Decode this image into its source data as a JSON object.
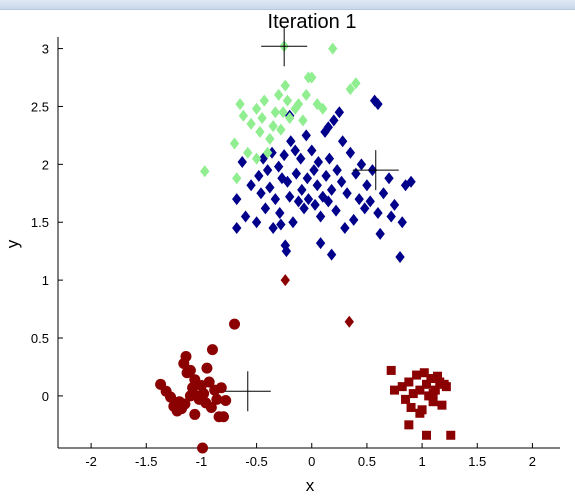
{
  "chart_data": {
    "type": "scatter",
    "title": "Iteration 1",
    "xlabel": "x",
    "ylabel": "y",
    "xlim": [
      -2.3,
      2.25
    ],
    "ylim": [
      -0.45,
      3.1
    ],
    "x_ticks": [
      -2,
      -1.5,
      -1,
      -0.5,
      0,
      0.5,
      1,
      1.5,
      2
    ],
    "x_tick_labels": [
      "-2",
      "-1.5",
      "-1",
      "-0.5",
      "0",
      "0.5",
      "1",
      "1.5",
      "2"
    ],
    "y_ticks": [
      0,
      0.5,
      1,
      1.5,
      2,
      2.5,
      3
    ],
    "y_tick_labels": [
      "0",
      "0.5",
      "1",
      "1.5",
      "2",
      "2.5",
      "3"
    ],
    "grid": false,
    "colors": {
      "dark_red": "#8b0000",
      "navy": "#00008b",
      "light_green": "#90ee90",
      "centroid": "#000000",
      "axis": "#000000"
    },
    "series": [
      {
        "marker": "circle",
        "color": "#8b0000",
        "points": [
          [
            -1.37,
            0.1
          ],
          [
            -1.32,
            0.04
          ],
          [
            -1.28,
            -0.01
          ],
          [
            -1.25,
            -0.09
          ],
          [
            -1.22,
            -0.13
          ],
          [
            -1.2,
            -0.05
          ],
          [
            -1.18,
            -0.11
          ],
          [
            -1.15,
            -0.07
          ],
          [
            -1.13,
            0.2
          ],
          [
            -1.1,
            0.0
          ],
          [
            -1.08,
            0.07
          ],
          [
            -1.06,
            -0.16
          ],
          [
            -1.04,
            0.0
          ],
          [
            -1.02,
            -0.03
          ],
          [
            -1.0,
            0.09
          ],
          [
            -0.98,
            0.02
          ],
          [
            -0.96,
            -0.06
          ],
          [
            -0.93,
            0.12
          ],
          [
            -0.91,
            -0.1
          ],
          [
            -0.9,
            0.4
          ],
          [
            -0.88,
            0.05
          ],
          [
            -0.86,
            -0.03
          ],
          [
            -0.84,
            -0.18
          ],
          [
            -0.82,
            0.07
          ],
          [
            -0.8,
            -0.18
          ],
          [
            -0.78,
            -0.04
          ],
          [
            -1.1,
            0.22
          ],
          [
            -1.14,
            0.34
          ],
          [
            -0.99,
            -0.45
          ],
          [
            -0.7,
            0.62
          ],
          [
            -1.16,
            0.28
          ],
          [
            -1.06,
            0.14
          ],
          [
            -0.95,
            0.24
          ]
        ]
      },
      {
        "marker": "square",
        "color": "#8b0000",
        "points": [
          [
            0.72,
            0.22
          ],
          [
            0.75,
            0.05
          ],
          [
            0.82,
            0.08
          ],
          [
            0.85,
            -0.03
          ],
          [
            0.88,
            0.12
          ],
          [
            0.9,
            -0.1
          ],
          [
            0.92,
            0.02
          ],
          [
            0.95,
            0.18
          ],
          [
            0.98,
            0.05
          ],
          [
            1.0,
            -0.12
          ],
          [
            1.02,
            0.2
          ],
          [
            1.04,
            0.1
          ],
          [
            1.06,
            0.0
          ],
          [
            1.08,
            0.15
          ],
          [
            1.1,
            -0.05
          ],
          [
            1.12,
            0.05
          ],
          [
            1.14,
            0.17
          ],
          [
            1.16,
            0.12
          ],
          [
            1.18,
            -0.08
          ],
          [
            1.2,
            0.1
          ],
          [
            1.22,
            0.08
          ],
          [
            1.04,
            -0.34
          ],
          [
            1.26,
            -0.34
          ],
          [
            0.88,
            -0.25
          ],
          [
            0.98,
            -0.15
          ],
          [
            1.1,
            0.02
          ]
        ]
      },
      {
        "marker": "diamond",
        "color": "#00008b",
        "points": [
          [
            -0.68,
            1.45
          ],
          [
            -0.68,
            1.7
          ],
          [
            -0.63,
            2.02
          ],
          [
            -0.6,
            1.55
          ],
          [
            -0.55,
            1.82
          ],
          [
            -0.5,
            1.5
          ],
          [
            -0.48,
            1.9
          ],
          [
            -0.46,
            1.75
          ],
          [
            -0.44,
            2.05
          ],
          [
            -0.42,
            1.62
          ],
          [
            -0.4,
            1.95
          ],
          [
            -0.38,
            1.8
          ],
          [
            -0.36,
            2.1
          ],
          [
            -0.35,
            1.45
          ],
          [
            -0.33,
            1.7
          ],
          [
            -0.3,
            1.98
          ],
          [
            -0.29,
            1.58
          ],
          [
            -0.27,
            1.88
          ],
          [
            -0.25,
            2.08
          ],
          [
            -0.24,
            1.3
          ],
          [
            -0.23,
            1.25
          ],
          [
            -0.22,
            1.85
          ],
          [
            -0.2,
            1.72
          ],
          [
            -0.19,
            2.2
          ],
          [
            -0.17,
            1.5
          ],
          [
            -0.15,
            2.12
          ],
          [
            -0.14,
            1.92
          ],
          [
            -0.12,
            1.68
          ],
          [
            -0.1,
            2.05
          ],
          [
            -0.09,
            1.78
          ],
          [
            -0.07,
            1.62
          ],
          [
            -0.05,
            2.25
          ],
          [
            -0.04,
            1.88
          ],
          [
            -0.03,
            1.7
          ],
          [
            0.0,
            2.12
          ],
          [
            0.02,
            1.95
          ],
          [
            0.03,
            1.65
          ],
          [
            0.05,
            1.82
          ],
          [
            0.06,
            2.02
          ],
          [
            0.08,
            1.55
          ],
          [
            0.1,
            1.72
          ],
          [
            0.12,
            2.28
          ],
          [
            0.13,
            1.9
          ],
          [
            0.15,
            1.68
          ],
          [
            0.16,
            2.05
          ],
          [
            0.18,
            1.78
          ],
          [
            0.2,
            2.38
          ],
          [
            0.22,
            1.6
          ],
          [
            0.23,
            1.95
          ],
          [
            0.25,
            2.45
          ],
          [
            0.27,
            1.85
          ],
          [
            0.28,
            2.2
          ],
          [
            0.3,
            1.45
          ],
          [
            0.32,
            1.75
          ],
          [
            0.35,
            2.1
          ],
          [
            0.38,
            1.52
          ],
          [
            0.4,
            1.92
          ],
          [
            0.43,
            1.7
          ],
          [
            0.45,
            2.0
          ],
          [
            0.48,
            1.62
          ],
          [
            0.5,
            1.82
          ],
          [
            0.53,
            1.68
          ],
          [
            0.55,
            1.95
          ],
          [
            0.57,
            2.55
          ],
          [
            0.6,
            2.52
          ],
          [
            0.6,
            1.58
          ],
          [
            0.62,
            1.4
          ],
          [
            0.65,
            1.75
          ],
          [
            0.7,
            1.88
          ],
          [
            0.72,
            1.55
          ],
          [
            0.75,
            1.65
          ],
          [
            0.8,
            1.2
          ],
          [
            0.82,
            1.5
          ],
          [
            0.85,
            1.82
          ],
          [
            0.9,
            1.85
          ],
          [
            -0.28,
            1.48
          ],
          [
            0.08,
            1.32
          ],
          [
            0.18,
            1.22
          ],
          [
            0.15,
            2.32
          ],
          [
            -0.2,
            2.42
          ]
        ]
      },
      {
        "marker": "diamond",
        "color": "#8b0000",
        "points": [
          [
            -0.24,
            1.0
          ],
          [
            0.34,
            0.64
          ]
        ]
      },
      {
        "marker": "diamond",
        "color": "#90ee90",
        "points": [
          [
            -0.97,
            1.94
          ],
          [
            -0.7,
            2.18
          ],
          [
            -0.65,
            2.52
          ],
          [
            -0.62,
            2.42
          ],
          [
            -0.58,
            2.1
          ],
          [
            -0.55,
            2.35
          ],
          [
            -0.5,
            2.48
          ],
          [
            -0.47,
            2.28
          ],
          [
            -0.45,
            2.4
          ],
          [
            -0.43,
            2.55
          ],
          [
            -0.4,
            2.1
          ],
          [
            -0.38,
            2.22
          ],
          [
            -0.35,
            2.33
          ],
          [
            -0.33,
            2.45
          ],
          [
            -0.3,
            2.6
          ],
          [
            -0.28,
            2.3
          ],
          [
            -0.26,
            2.45
          ],
          [
            -0.24,
            2.68
          ],
          [
            -0.22,
            2.55
          ],
          [
            -0.2,
            2.4
          ],
          [
            -0.15,
            2.48
          ],
          [
            -0.12,
            2.52
          ],
          [
            -0.08,
            2.38
          ],
          [
            -0.05,
            2.6
          ],
          [
            -0.03,
            2.75
          ],
          [
            0.0,
            2.75
          ],
          [
            0.05,
            2.52
          ],
          [
            0.1,
            2.48
          ],
          [
            0.19,
            3.0
          ],
          [
            0.35,
            2.65
          ],
          [
            0.4,
            2.7
          ],
          [
            -0.68,
            1.88
          ],
          [
            -0.5,
            2.05
          ],
          [
            -0.25,
            3.02
          ]
        ]
      }
    ],
    "centroids": [
      [
        -0.25,
        3.02
      ],
      [
        -0.58,
        0.04
      ],
      [
        0.58,
        1.95
      ]
    ]
  }
}
